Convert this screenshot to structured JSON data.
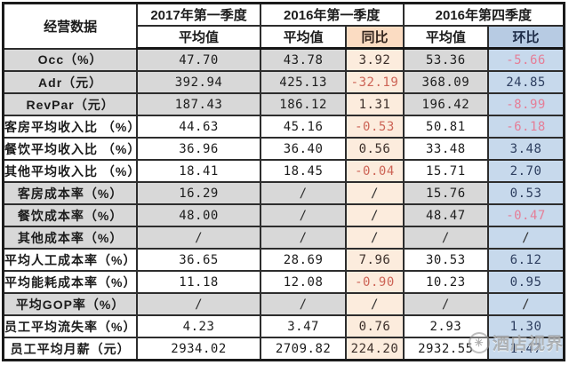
{
  "table": {
    "corner_label": "经营数据",
    "groups": [
      {
        "title": "2017年第一季度",
        "sub": [
          "平均值"
        ]
      },
      {
        "title": "2016年第一季度",
        "sub": [
          "平均值",
          "同比"
        ]
      },
      {
        "title": "2016年第四季度",
        "sub": [
          "平均值",
          "环比"
        ]
      }
    ],
    "rows": [
      {
        "label": "Occ（%）",
        "v2017": "47.70",
        "v2016q1": "43.78",
        "yoy": "3.92",
        "v2016q4": "53.36",
        "qoq": "-5.66",
        "shaded": true
      },
      {
        "label": "Adr（元）",
        "v2017": "392.94",
        "v2016q1": "425.13",
        "yoy": "-32.19",
        "v2016q4": "368.09",
        "qoq": "24.85",
        "shaded": true
      },
      {
        "label": "RevPar（元）",
        "v2017": "187.43",
        "v2016q1": "186.12",
        "yoy": "1.31",
        "v2016q4": "196.42",
        "qoq": "-8.99",
        "shaded": true
      },
      {
        "label": "客房平均收入比 （%）",
        "v2017": "44.63",
        "v2016q1": "45.16",
        "yoy": "-0.53",
        "v2016q4": "50.81",
        "qoq": "-6.18",
        "shaded": false
      },
      {
        "label": "餐饮平均收入比 （%）",
        "v2017": "36.96",
        "v2016q1": "36.40",
        "yoy": "0.56",
        "v2016q4": "33.48",
        "qoq": "3.48",
        "shaded": false
      },
      {
        "label": "其他平均收入比 （%）",
        "v2017": "18.41",
        "v2016q1": "18.45",
        "yoy": "-0.04",
        "v2016q4": "15.71",
        "qoq": "2.70",
        "shaded": false
      },
      {
        "label": "客房成本率（%）",
        "v2017": "16.29",
        "v2016q1": "/",
        "yoy": "/",
        "v2016q4": "15.76",
        "qoq": "0.53",
        "shaded": true
      },
      {
        "label": "餐饮成本率（%）",
        "v2017": "48.00",
        "v2016q1": "/",
        "yoy": "/",
        "v2016q4": "48.47",
        "qoq": "-0.47",
        "shaded": true
      },
      {
        "label": "其他成本率（%）",
        "v2017": "/",
        "v2016q1": "/",
        "yoy": "/",
        "v2016q4": "/",
        "qoq": "/",
        "shaded": true
      },
      {
        "label": "平均人工成本率（%）",
        "v2017": "36.65",
        "v2016q1": "28.69",
        "yoy": "7.96",
        "v2016q4": "30.53",
        "qoq": "6.12",
        "shaded": false
      },
      {
        "label": "平均能耗成本率（%）",
        "v2017": "11.18",
        "v2016q1": "12.08",
        "yoy": "-0.90",
        "v2016q4": "10.23",
        "qoq": "0.95",
        "shaded": false
      },
      {
        "label": "平均GOP率（%）",
        "v2017": "/",
        "v2016q1": "/",
        "yoy": "/",
        "v2016q4": "/",
        "qoq": "/",
        "shaded": true
      },
      {
        "label": "员工平均流失率（%）",
        "v2017": "4.23",
        "v2016q1": "3.47",
        "yoy": "0.76",
        "v2016q4": "2.93",
        "qoq": "1.30",
        "shaded": false
      },
      {
        "label": "员工平均月薪（元）",
        "v2017": "2934.02",
        "v2016q1": "2709.82",
        "yoy": "224.20",
        "v2016q4": "2932.55",
        "qoq": "1.47",
        "shaded": false
      }
    ]
  },
  "watermark": {
    "icon": "✳",
    "text": "酒店视界"
  },
  "colors": {
    "row_shade": "#d8d8d8",
    "yoy_header_bg": "#fbdcc2",
    "yoy_cell_bg": "#fcecdd",
    "qoq_header_bg": "#b7cbe3",
    "qoq_cell_bg": "#c7d9ec",
    "negative_yoy_text": "#cd6456",
    "negative_qoq_text": "#e57e97",
    "border": "#1b1b1b"
  },
  "chart_data": {
    "type": "table",
    "title": "经营数据",
    "columns": [
      "经营数据",
      "2017年第一季度 平均值",
      "2016年第一季度 平均值",
      "2016年第一季度 同比",
      "2016年第四季度 平均值",
      "2016年第四季度 环比"
    ],
    "rows": [
      [
        "Occ（%）",
        47.7,
        43.78,
        3.92,
        53.36,
        -5.66
      ],
      [
        "Adr（元）",
        392.94,
        425.13,
        -32.19,
        368.09,
        24.85
      ],
      [
        "RevPar（元）",
        187.43,
        186.12,
        1.31,
        196.42,
        -8.99
      ],
      [
        "客房平均收入比（%）",
        44.63,
        45.16,
        -0.53,
        50.81,
        -6.18
      ],
      [
        "餐饮平均收入比（%）",
        36.96,
        36.4,
        0.56,
        33.48,
        3.48
      ],
      [
        "其他平均收入比（%）",
        18.41,
        18.45,
        -0.04,
        15.71,
        2.7
      ],
      [
        "客房成本率（%）",
        16.29,
        null,
        null,
        15.76,
        0.53
      ],
      [
        "餐饮成本率（%）",
        48.0,
        null,
        null,
        48.47,
        -0.47
      ],
      [
        "其他成本率（%）",
        null,
        null,
        null,
        null,
        null
      ],
      [
        "平均人工成本率（%）",
        36.65,
        28.69,
        7.96,
        30.53,
        6.12
      ],
      [
        "平均能耗成本率（%）",
        11.18,
        12.08,
        -0.9,
        10.23,
        0.95
      ],
      [
        "平均GOP率（%）",
        null,
        null,
        null,
        null,
        null
      ],
      [
        "员工平均流失率（%）",
        4.23,
        3.47,
        0.76,
        2.93,
        1.3
      ],
      [
        "员工平均月薪（元）",
        2934.02,
        2709.82,
        224.2,
        2932.55,
        1.47
      ]
    ]
  }
}
